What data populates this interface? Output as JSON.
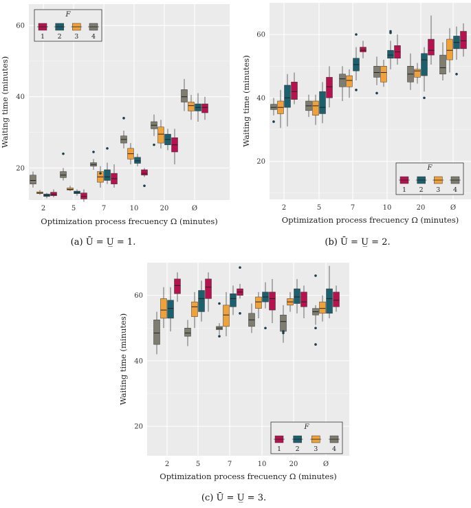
{
  "figure": {
    "captions": [
      "(a)  Ū = U̲ = 1.",
      "(b)  Ū = U̲ = 2.",
      "(c)  Ū = U̲ = 3."
    ]
  },
  "legend": {
    "title": "F",
    "entries": [
      "1",
      "2",
      "3",
      "4"
    ],
    "order_panel_a": [
      "1",
      "2",
      "3",
      "4"
    ],
    "order_panels_bc": [
      "1",
      "2",
      "3",
      "4"
    ]
  },
  "colors": {
    "panel_bg": "#ebebeb",
    "grid": "#ffffff",
    "F1": "#b5124f",
    "F2": "#1c5f6d",
    "F3": "#f0a23a",
    "F4": "#7e7d70",
    "outlier": "#1f3e4c",
    "whisker": "#4a4a4a"
  },
  "chart_data": [
    {
      "type": "box",
      "panel": "a",
      "xlabel": "Optimization process frecuency Ω (minutes)",
      "ylabel": "Waiting time (minutes)",
      "categories": [
        "2",
        "5",
        "7",
        "10",
        "20",
        "Ø"
      ],
      "yticks": [
        20,
        40,
        60
      ],
      "ylim": [
        11,
        66
      ],
      "series_order": [
        "F4",
        "F3",
        "F2",
        "F1"
      ],
      "series": [
        {
          "name": "F4",
          "boxes": [
            {
              "min": 14.5,
              "q1": 15.5,
              "median": 16.5,
              "q3": 18.0,
              "max": 19.0,
              "outliers": []
            },
            {
              "min": 16.5,
              "q1": 17.3,
              "median": 18.0,
              "q3": 19.0,
              "max": 20.0,
              "outliers": [
                24.0
              ]
            },
            {
              "min": 19.5,
              "q1": 20.5,
              "median": 21.0,
              "q3": 21.5,
              "max": 22.5,
              "outliers": [
                24.5
              ]
            },
            {
              "min": 25.5,
              "q1": 27.0,
              "median": 28.0,
              "q3": 29.0,
              "max": 30.5,
              "outliers": [
                34.0
              ]
            },
            {
              "min": 29.0,
              "q1": 31.0,
              "median": 32.0,
              "q3": 33.0,
              "max": 35.0,
              "outliers": [
                26.5
              ]
            },
            {
              "min": 36.0,
              "q1": 38.5,
              "median": 40.0,
              "q3": 42.0,
              "max": 45.0,
              "outliers": []
            }
          ]
        },
        {
          "name": "F3",
          "boxes": [
            {
              "min": 12.5,
              "q1": 12.8,
              "median": 13.0,
              "q3": 13.3,
              "max": 13.8,
              "outliers": []
            },
            {
              "min": 13.5,
              "q1": 13.8,
              "median": 14.0,
              "q3": 14.4,
              "max": 15.0,
              "outliers": []
            },
            {
              "min": 14.5,
              "q1": 16.0,
              "median": 17.5,
              "q3": 19.0,
              "max": 20.5,
              "outliers": [
                18.5
              ]
            },
            {
              "min": 21.0,
              "q1": 22.5,
              "median": 24.0,
              "q3": 25.5,
              "max": 27.0,
              "outliers": []
            },
            {
              "min": 25.5,
              "q1": 27.0,
              "median": 29.5,
              "q3": 31.5,
              "max": 33.5,
              "outliers": []
            },
            {
              "min": 33.5,
              "q1": 36.0,
              "median": 37.5,
              "q3": 38.5,
              "max": 40.5,
              "outliers": []
            }
          ]
        },
        {
          "name": "F2",
          "boxes": [
            {
              "min": 11.5,
              "q1": 12.0,
              "median": 12.3,
              "q3": 12.7,
              "max": 13.0,
              "outliers": []
            },
            {
              "min": 12.2,
              "q1": 12.8,
              "median": 13.1,
              "q3": 13.5,
              "max": 14.0,
              "outliers": []
            },
            {
              "min": 15.5,
              "q1": 16.5,
              "median": 17.5,
              "q3": 19.5,
              "max": 21.5,
              "outliers": [
                25.5
              ]
            },
            {
              "min": 20.5,
              "q1": 21.3,
              "median": 22.0,
              "q3": 23.0,
              "max": 24.0,
              "outliers": []
            },
            {
              "min": 25.0,
              "q1": 26.5,
              "median": 28.0,
              "q3": 29.5,
              "max": 31.0,
              "outliers": []
            },
            {
              "min": 33.0,
              "q1": 36.0,
              "median": 37.0,
              "q3": 38.0,
              "max": 41.0,
              "outliers": []
            }
          ]
        },
        {
          "name": "F1",
          "boxes": [
            {
              "min": 11.8,
              "q1": 12.2,
              "median": 12.6,
              "q3": 13.2,
              "max": 14.0,
              "outliers": []
            },
            {
              "min": 10.5,
              "q1": 11.3,
              "median": 12.0,
              "q3": 13.0,
              "max": 14.0,
              "outliers": []
            },
            {
              "min": 14.5,
              "q1": 15.5,
              "median": 17.0,
              "q3": 18.5,
              "max": 21.0,
              "outliers": []
            },
            {
              "min": 17.5,
              "q1": 18.0,
              "median": 18.5,
              "q3": 19.5,
              "max": 20.0,
              "outliers": [
                15.0
              ]
            },
            {
              "min": 21.0,
              "q1": 24.5,
              "median": 26.5,
              "q3": 28.5,
              "max": 31.0,
              "outliers": []
            },
            {
              "min": 33.5,
              "q1": 35.5,
              "median": 37.0,
              "q3": 38.0,
              "max": 40.0,
              "outliers": []
            }
          ]
        }
      ]
    },
    {
      "type": "box",
      "panel": "b",
      "xlabel": "Optimization process frecuency Ω (minutes)",
      "ylabel": "Waiting time (minutes)",
      "categories": [
        "2",
        "5",
        "7",
        "10",
        "20",
        "Ø"
      ],
      "yticks": [
        20,
        40,
        60
      ],
      "ylim": [
        8,
        70
      ],
      "series_order": [
        "F4",
        "F3",
        "F2",
        "F1"
      ],
      "series": [
        {
          "name": "F4",
          "boxes": [
            {
              "min": 34.5,
              "q1": 36.3,
              "median": 37.0,
              "q3": 38.0,
              "max": 40.0,
              "outliers": [
                32.5
              ]
            },
            {
              "min": 34.0,
              "q1": 36.0,
              "median": 37.5,
              "q3": 39.0,
              "max": 41.0,
              "outliers": []
            },
            {
              "min": 39.0,
              "q1": 43.5,
              "median": 46.0,
              "q3": 47.5,
              "max": 50.0,
              "outliers": []
            },
            {
              "min": 44.0,
              "q1": 46.5,
              "median": 48.0,
              "q3": 50.0,
              "max": 53.0,
              "outliers": [
                41.5
              ]
            },
            {
              "min": 42.5,
              "q1": 45.0,
              "median": 47.5,
              "q3": 50.0,
              "max": 54.0,
              "outliers": []
            },
            {
              "min": 45.5,
              "q1": 47.5,
              "median": 49.5,
              "q3": 53.5,
              "max": 57.5,
              "outliers": []
            }
          ]
        },
        {
          "name": "F3",
          "boxes": [
            {
              "min": 30.5,
              "q1": 35.0,
              "median": 37.0,
              "q3": 39.0,
              "max": 42.5,
              "outliers": []
            },
            {
              "min": 31.5,
              "q1": 34.5,
              "median": 37.5,
              "q3": 39.0,
              "max": 41.0,
              "outliers": []
            },
            {
              "min": 40.0,
              "q1": 43.5,
              "median": 45.5,
              "q3": 47.0,
              "max": 49.0,
              "outliers": []
            },
            {
              "min": 43.5,
              "q1": 45.0,
              "median": 48.0,
              "q3": 50.0,
              "max": 52.0,
              "outliers": []
            },
            {
              "min": 44.5,
              "q1": 46.5,
              "median": 48.5,
              "q3": 49.0,
              "max": 51.0,
              "outliers": []
            },
            {
              "min": 48.0,
              "q1": 52.0,
              "median": 55.0,
              "q3": 58.5,
              "max": 62.0,
              "outliers": []
            }
          ]
        },
        {
          "name": "F2",
          "boxes": [
            {
              "min": 31.0,
              "q1": 37.0,
              "median": 40.0,
              "q3": 44.0,
              "max": 47.5,
              "outliers": []
            },
            {
              "min": 32.0,
              "q1": 35.0,
              "median": 37.0,
              "q3": 42.0,
              "max": 45.0,
              "outliers": []
            },
            {
              "min": 45.5,
              "q1": 48.5,
              "median": 50.5,
              "q3": 52.5,
              "max": 56.0,
              "outliers": [
                60.0,
                42.5
              ]
            },
            {
              "min": 49.0,
              "q1": 52.5,
              "median": 53.5,
              "q3": 55.0,
              "max": 58.0,
              "outliers": [
                60.5,
                61.0
              ]
            },
            {
              "min": 42.0,
              "q1": 47.0,
              "median": 52.0,
              "q3": 54.0,
              "max": 56.0,
              "outliers": [
                40.0
              ]
            },
            {
              "min": 52.0,
              "q1": 55.5,
              "median": 57.5,
              "q3": 59.5,
              "max": 62.5,
              "outliers": [
                47.5
              ]
            }
          ]
        },
        {
          "name": "F1",
          "boxes": [
            {
              "min": 38.0,
              "q1": 39.5,
              "median": 42.0,
              "q3": 45.0,
              "max": 48.0,
              "outliers": []
            },
            {
              "min": 37.0,
              "q1": 40.0,
              "median": 43.5,
              "q3": 46.5,
              "max": 50.0,
              "outliers": []
            },
            {
              "min": 52.5,
              "q1": 54.5,
              "median": 55.0,
              "q3": 56.0,
              "max": 58.0,
              "outliers": []
            },
            {
              "min": 50.5,
              "q1": 52.5,
              "median": 54.5,
              "q3": 56.5,
              "max": 60.0,
              "outliers": []
            },
            {
              "min": 50.5,
              "q1": 53.5,
              "median": 55.0,
              "q3": 58.5,
              "max": 66.0,
              "outliers": []
            },
            {
              "min": 53.0,
              "q1": 55.5,
              "median": 58.0,
              "q3": 61.0,
              "max": 63.5,
              "outliers": []
            }
          ]
        }
      ]
    },
    {
      "type": "box",
      "panel": "c",
      "xlabel": "Optimization process frecuency Ω (minutes)",
      "ylabel": "Waiting time (minutes)",
      "categories": [
        "2",
        "5",
        "7",
        "10",
        "20",
        "Ø"
      ],
      "yticks": [
        20,
        40,
        60
      ],
      "ylim": [
        11,
        70
      ],
      "series_order": [
        "F4",
        "F3",
        "F2",
        "F1"
      ],
      "series": [
        {
          "name": "F4",
          "boxes": [
            {
              "min": 42.0,
              "q1": 45.0,
              "median": 48.5,
              "q3": 52.5,
              "max": 55.0,
              "outliers": []
            },
            {
              "min": 44.5,
              "q1": 47.5,
              "median": 48.5,
              "q3": 50.0,
              "max": 52.5,
              "outliers": []
            },
            {
              "min": 48.0,
              "q1": 49.5,
              "median": 50.0,
              "q3": 50.5,
              "max": 51.5,
              "outliers": [
                57.5,
                47.5
              ]
            },
            {
              "min": 48.5,
              "q1": 50.5,
              "median": 52.5,
              "q3": 54.5,
              "max": 57.5,
              "outliers": []
            },
            {
              "min": 45.5,
              "q1": 49.0,
              "median": 52.0,
              "q3": 54.0,
              "max": 57.0,
              "outliers": [
                48.5,
                49.0
              ]
            },
            {
              "min": 51.0,
              "q1": 54.0,
              "median": 55.0,
              "q3": 56.0,
              "max": 57.0,
              "outliers": [
                66.0,
                50.0,
                45.0
              ]
            }
          ]
        },
        {
          "name": "F3",
          "boxes": [
            {
              "min": 50.0,
              "q1": 53.0,
              "median": 55.5,
              "q3": 59.0,
              "max": 62.5,
              "outliers": []
            },
            {
              "min": 50.0,
              "q1": 53.5,
              "median": 56.5,
              "q3": 58.0,
              "max": 61.0,
              "outliers": []
            },
            {
              "min": 47.5,
              "q1": 50.5,
              "median": 54.0,
              "q3": 57.0,
              "max": 61.0,
              "outliers": []
            },
            {
              "min": 53.0,
              "q1": 56.0,
              "median": 58.0,
              "q3": 59.5,
              "max": 61.0,
              "outliers": []
            },
            {
              "min": 55.0,
              "q1": 57.0,
              "median": 58.0,
              "q3": 59.0,
              "max": 61.0,
              "outliers": []
            },
            {
              "min": 52.0,
              "q1": 54.5,
              "median": 56.0,
              "q3": 58.0,
              "max": 60.0,
              "outliers": []
            }
          ]
        },
        {
          "name": "F2",
          "boxes": [
            {
              "min": 49.0,
              "q1": 53.0,
              "median": 56.0,
              "q3": 58.5,
              "max": 62.5,
              "outliers": []
            },
            {
              "min": 52.0,
              "q1": 55.0,
              "median": 59.0,
              "q3": 61.5,
              "max": 64.5,
              "outliers": []
            },
            {
              "min": 54.0,
              "q1": 56.5,
              "median": 59.0,
              "q3": 60.5,
              "max": 63.0,
              "outliers": []
            },
            {
              "min": 56.0,
              "q1": 58.0,
              "median": 59.5,
              "q3": 61.0,
              "max": 64.0,
              "outliers": [
                50.0
              ]
            },
            {
              "min": 54.5,
              "q1": 57.5,
              "median": 59.5,
              "q3": 62.0,
              "max": 65.0,
              "outliers": []
            },
            {
              "min": 53.0,
              "q1": 54.5,
              "median": 59.0,
              "q3": 62.0,
              "max": 69.0,
              "outliers": []
            }
          ]
        },
        {
          "name": "F1",
          "boxes": [
            {
              "min": 58.0,
              "q1": 60.5,
              "median": 63.0,
              "q3": 65.0,
              "max": 67.0,
              "outliers": []
            },
            {
              "min": 55.0,
              "q1": 59.0,
              "median": 62.5,
              "q3": 65.0,
              "max": 67.0,
              "outliers": []
            },
            {
              "min": 59.0,
              "q1": 60.0,
              "median": 61.0,
              "q3": 62.0,
              "max": 63.5,
              "outliers": [
                68.5,
                54.5
              ]
            },
            {
              "min": 51.5,
              "q1": 55.5,
              "median": 59.0,
              "q3": 61.0,
              "max": 65.0,
              "outliers": []
            },
            {
              "min": 53.0,
              "q1": 56.5,
              "median": 58.0,
              "q3": 61.0,
              "max": 63.0,
              "outliers": []
            },
            {
              "min": 55.0,
              "q1": 56.5,
              "median": 58.5,
              "q3": 61.0,
              "max": 63.0,
              "outliers": []
            }
          ]
        }
      ]
    }
  ]
}
